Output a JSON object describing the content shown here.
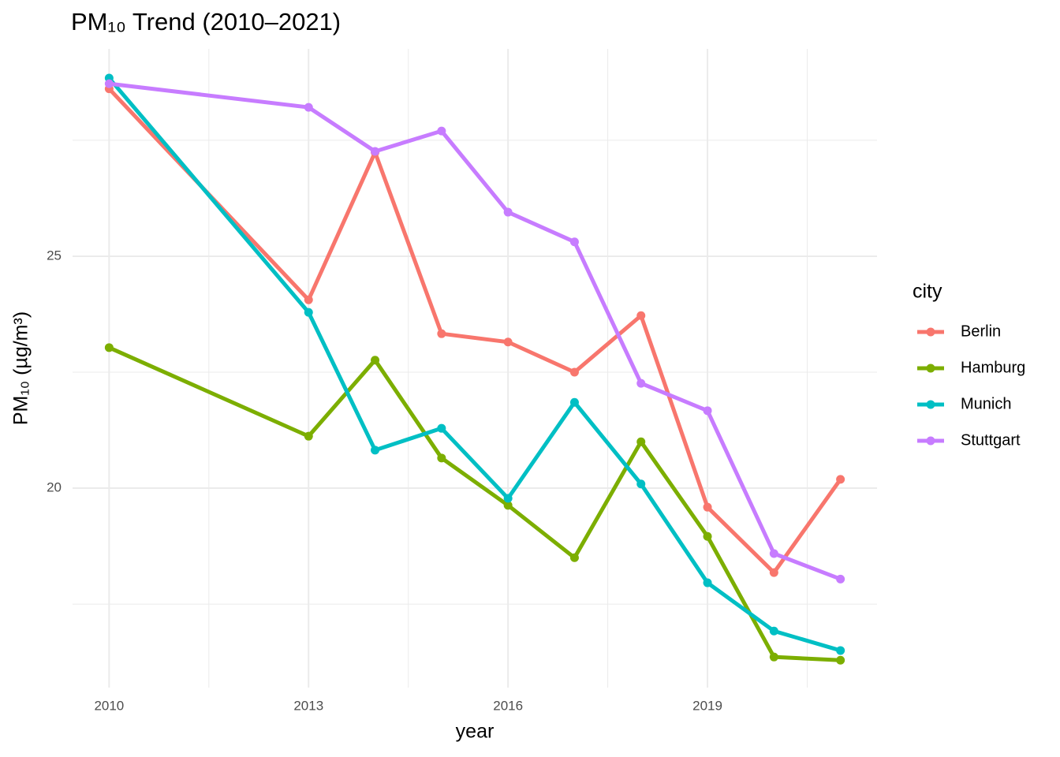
{
  "chart_data": {
    "type": "line",
    "title": "PM₁₀ Trend (2010–2021)",
    "x_label": "year",
    "y_label": "PM₁₀ (µg/m³)",
    "legend_title": "city",
    "legend_position": "right",
    "grid": true,
    "x": [
      2010,
      2013,
      2014,
      2015,
      2016,
      2017,
      2018,
      2019,
      2020,
      2021
    ],
    "xlim": [
      2009.45,
      2021.55
    ],
    "xticks": [
      2010,
      2013,
      2016,
      2019
    ],
    "minor_xticks": [
      2011.5,
      2014.5,
      2017.5,
      2020.5
    ],
    "ylim": [
      15.7,
      29.47
    ],
    "yticks": [
      20,
      25
    ],
    "minor_yticks": [
      17.5,
      22.5,
      27.5
    ],
    "series": [
      {
        "name": "Berlin",
        "color": "#F8766D",
        "values": [
          28.61,
          24.06,
          27.24,
          23.33,
          23.15,
          22.5,
          23.72,
          19.59,
          18.18,
          20.19
        ]
      },
      {
        "name": "Hamburg",
        "color": "#7CAE00",
        "values": [
          23.03,
          21.12,
          22.76,
          20.65,
          19.63,
          18.5,
          21.0,
          18.96,
          16.36,
          16.29
        ]
      },
      {
        "name": "Munich",
        "color": "#00BFC4",
        "values": [
          28.84,
          23.79,
          20.82,
          21.29,
          19.78,
          21.85,
          20.09,
          17.96,
          16.92,
          16.5
        ]
      },
      {
        "name": "Stuttgart",
        "color": "#C77CFF",
        "values": [
          28.72,
          28.21,
          27.26,
          27.7,
          25.95,
          25.31,
          22.26,
          21.67,
          18.59,
          18.04
        ]
      }
    ]
  }
}
